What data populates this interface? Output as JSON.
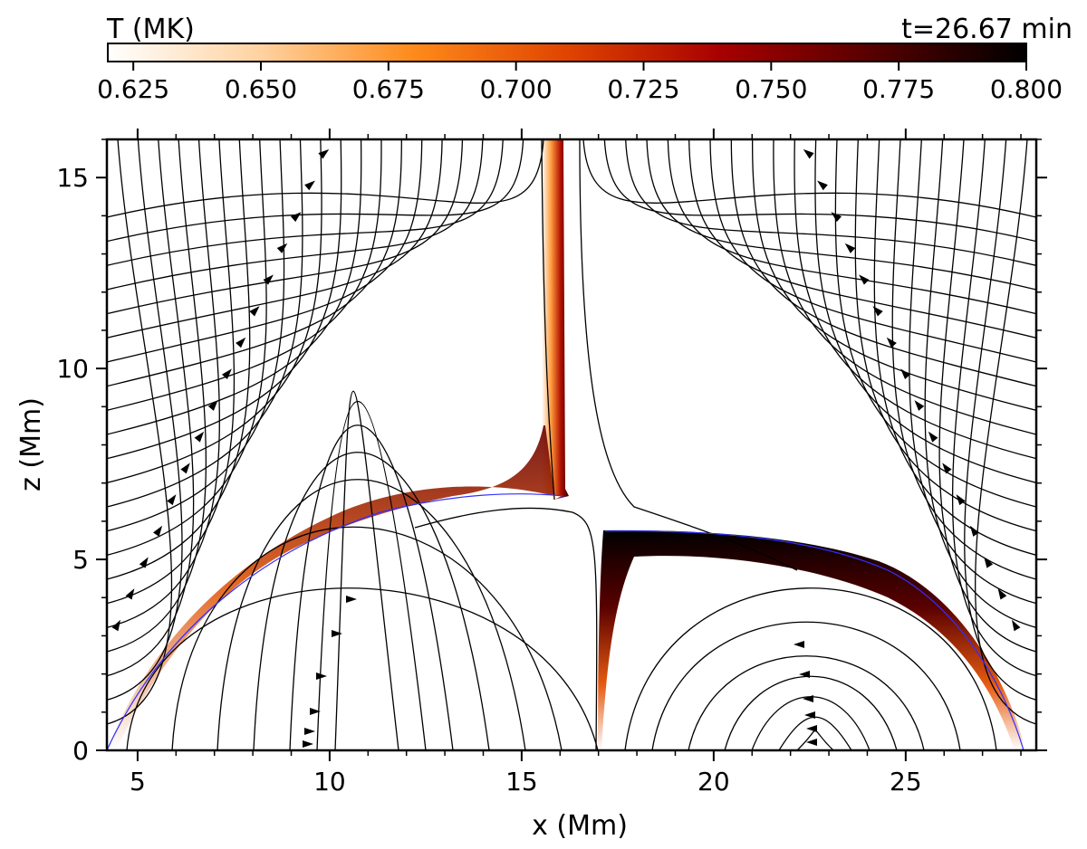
{
  "chart_data": {
    "type": "heatmap",
    "title": "",
    "time_label": "t=26.67 min",
    "xlabel": "x (Mm)",
    "ylabel": "z (Mm)",
    "xlim": [
      4.2,
      28.4
    ],
    "ylim": [
      0,
      16
    ],
    "x_ticks": [
      5,
      10,
      15,
      20,
      25
    ],
    "y_ticks": [
      0,
      5,
      10,
      15
    ],
    "grid": false,
    "colorbar": {
      "label": "T (MK)",
      "range": [
        0.62,
        0.8
      ],
      "ticks": [
        "0.625",
        "0.650",
        "0.675",
        "0.700",
        "0.725",
        "0.750",
        "0.775",
        "0.800"
      ],
      "colormap": "gist_heat_r",
      "stops": [
        "#ffffff",
        "#ffd2a0",
        "#ff8a1a",
        "#e04400",
        "#a80000",
        "#560000",
        "#000000"
      ]
    },
    "field_line_color": "#000000",
    "separatrix_color": "#3030ff",
    "features": {
      "null_point": [
        16.9,
        5.9
      ],
      "left_footpoint_x": 4.2,
      "right_footpoint_x": 28.2,
      "central_footpoint_x": 17.0,
      "vertical_current_sheet_x": [
        15.6,
        16.1
      ]
    }
  }
}
